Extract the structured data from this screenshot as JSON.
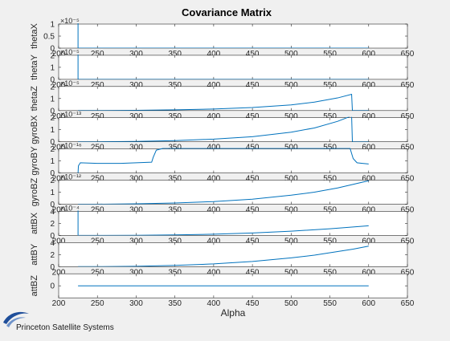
{
  "figure": {
    "title": "Covariance Matrix",
    "footer": "Princeton Satellite Systems",
    "background": "#f0f0f0",
    "axes_background": "#ffffff",
    "line_color": "#0072bd",
    "logo_color": "#1f4e9a"
  },
  "chart_data": {
    "type": "line",
    "title": "Covariance Matrix",
    "xlabel": "Alpha",
    "xlim": [
      200,
      650
    ],
    "xticks": [
      "200",
      "250",
      "300",
      "350",
      "400",
      "450",
      "500",
      "550",
      "600",
      "650"
    ],
    "grid": false,
    "panels": [
      {
        "name": "thetaX",
        "ylabel": "thetaX",
        "ylim": [
          0,
          1
        ],
        "yticks": [
          "0",
          "0.5",
          "1"
        ],
        "exponent": "×10⁻⁵",
        "series": [
          {
            "x": [
              225,
              225,
              226,
              600
            ],
            "y": [
              1.05,
              0.0,
              0.0,
              0.0
            ]
          }
        ]
      },
      {
        "name": "thetaY",
        "ylabel": "thetaY",
        "ylim": [
          0,
          2
        ],
        "yticks": [
          "0",
          "1",
          "2"
        ],
        "exponent": "×10⁻⁵",
        "series": [
          {
            "x": [
              225,
              225,
              226,
              600
            ],
            "y": [
              2.1,
              0.0,
              0.0,
              0.0
            ]
          }
        ]
      },
      {
        "name": "thetaZ",
        "ylabel": "thetaZ",
        "ylim": [
          0,
          2
        ],
        "yticks": [
          "0",
          "1",
          "2"
        ],
        "exponent": "×10⁻⁵",
        "series": [
          {
            "x": [
              225,
              250,
              300,
              350,
              400,
              450,
              500,
              530,
              560,
              578,
              579,
              600
            ],
            "y": [
              0.0,
              0.0,
              0.02,
              0.06,
              0.13,
              0.25,
              0.47,
              0.7,
              1.05,
              1.35,
              0.0,
              0.0
            ]
          }
        ]
      },
      {
        "name": "gyroBX",
        "ylabel": "gyroBX",
        "ylim": [
          0,
          2
        ],
        "yticks": [
          "0",
          "1",
          "2"
        ],
        "exponent": "×10⁻¹³",
        "series": [
          {
            "x": [
              225,
              250,
              300,
              350,
              400,
              450,
              500,
              530,
              560,
              578,
              579,
              600
            ],
            "y": [
              0.0,
              0.0,
              0.03,
              0.1,
              0.22,
              0.42,
              0.8,
              1.15,
              1.7,
              2.15,
              0.0,
              0.0
            ]
          }
        ]
      },
      {
        "name": "gyroBY",
        "ylabel": "gyroBY",
        "ylim": [
          0,
          2
        ],
        "yticks": [
          "0",
          "1",
          "2"
        ],
        "exponent": "×10⁻¹⁶",
        "series": [
          {
            "x": [
              225,
              225.5,
              228,
              250,
              280,
              300,
              320,
              322,
              326,
              335,
              400,
              450,
              500,
              550,
              576,
              580,
              585,
              592,
              600
            ],
            "y": [
              0.0,
              0.6,
              0.85,
              0.8,
              0.8,
              0.85,
              0.9,
              1.3,
              1.9,
              2.05,
              2.05,
              2.05,
              2.05,
              2.05,
              2.05,
              1.2,
              0.85,
              0.8,
              0.75
            ]
          }
        ]
      },
      {
        "name": "gyroBZ",
        "ylabel": "gyroBZ",
        "ylim": [
          0,
          2
        ],
        "yticks": [
          "0",
          "1",
          "2"
        ],
        "exponent": "×10⁻¹²",
        "series": [
          {
            "x": [
              225,
              250,
              300,
              350,
              400,
              450,
              500,
              530,
              560,
              580,
              600
            ],
            "y": [
              0.0,
              0.0,
              0.03,
              0.1,
              0.22,
              0.42,
              0.75,
              1.0,
              1.35,
              1.65,
              1.95
            ]
          }
        ]
      },
      {
        "name": "attBX",
        "ylabel": "attBX",
        "ylim": [
          0,
          4
        ],
        "yticks": [
          "0",
          "2",
          "4"
        ],
        "exponent": "×10⁻⁴",
        "series": [
          {
            "x": [
              225,
              225,
              226,
              250,
              300,
              350,
              400,
              450,
              500,
              550,
              600
            ],
            "y": [
              4.2,
              0.0,
              0.0,
              0.0,
              0.02,
              0.08,
              0.2,
              0.4,
              0.7,
              1.1,
              1.6
            ]
          }
        ]
      },
      {
        "name": "attBY",
        "ylabel": "attBY",
        "ylim": [
          0,
          4
        ],
        "yticks": [
          "0",
          "2",
          "4"
        ],
        "exponent": "",
        "series": [
          {
            "x": [
              225,
              250,
              300,
              350,
              400,
              450,
              500,
              530,
              560,
              580,
              600
            ],
            "y": [
              0.0,
              0.0,
              0.05,
              0.2,
              0.45,
              0.85,
              1.45,
              1.9,
              2.5,
              2.9,
              3.4
            ]
          }
        ]
      },
      {
        "name": "attBZ",
        "ylabel": "attBZ",
        "ylim": [
          -1,
          1
        ],
        "yticks": [
          "0"
        ],
        "yticks_values": [
          0
        ],
        "exponent": "",
        "series": [
          {
            "x": [
              225,
              600
            ],
            "y": [
              0.0,
              0.0
            ]
          }
        ]
      }
    ]
  }
}
